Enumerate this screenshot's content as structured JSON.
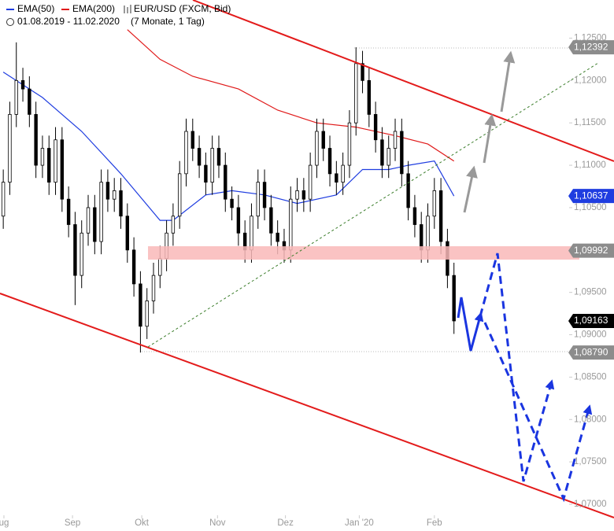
{
  "chart_data": {
    "type": "candlestick",
    "title": "EUR/USD (FXCM, Bid)",
    "subtitle": "01.08.2019 - 11.02.2020",
    "period": "(7 Monate, 1 Tag)",
    "color": "#000000",
    "open": [
      1.104,
      1.108,
      1.116,
      1.12,
      1.119,
      1.116,
      1.11,
      1.112,
      1.108,
      1.113,
      1.106,
      1.103,
      1.097,
      1.102,
      1.105,
      1.101,
      1.108,
      1.106,
      1.107,
      1.104,
      1.1,
      1.096,
      1.091,
      1.094,
      1.097,
      1.099,
      1.102,
      1.104,
      1.109,
      1.114,
      1.112,
      1.11,
      1.108,
      1.112,
      1.11,
      1.106,
      1.105,
      1.102,
      1.1,
      1.104,
      1.108,
      1.105,
      1.102,
      1.101,
      1.1,
      1.106,
      1.107,
      1.106,
      1.11,
      1.114,
      1.112,
      1.109,
      1.108,
      1.11,
      1.115,
      1.122,
      1.12,
      1.116,
      1.113,
      1.11,
      1.112,
      1.114,
      1.109,
      1.105,
      1.103,
      1.1,
      1.104,
      1.107,
      1.101,
      1.097
    ],
    "high": [
      1.1095,
      1.1175,
      1.1245,
      1.1215,
      1.1205,
      1.1175,
      1.1135,
      1.1135,
      1.1145,
      1.1145,
      1.1075,
      1.1045,
      1.1035,
      1.1065,
      1.1065,
      1.1095,
      1.1095,
      1.1085,
      1.1085,
      1.1055,
      1.1015,
      1.0975,
      1.0955,
      1.0985,
      1.1005,
      1.1035,
      1.1055,
      1.1105,
      1.1155,
      1.1155,
      1.1135,
      1.1115,
      1.1135,
      1.1135,
      1.1115,
      1.1075,
      1.1065,
      1.1035,
      1.1055,
      1.1095,
      1.1095,
      1.1065,
      1.1035,
      1.1025,
      1.1075,
      1.1085,
      1.1085,
      1.1115,
      1.1155,
      1.1155,
      1.1135,
      1.1105,
      1.1115,
      1.1165,
      1.12392,
      1.1235,
      1.1215,
      1.1175,
      1.1145,
      1.1135,
      1.1155,
      1.1155,
      1.1105,
      1.1065,
      1.1045,
      1.1055,
      1.1085,
      1.1085,
      1.1025,
      1.0985
    ],
    "low": [
      1.1025,
      1.1065,
      1.1145,
      1.1175,
      1.1145,
      1.1085,
      1.1085,
      1.1065,
      1.1065,
      1.1045,
      1.1015,
      1.0935,
      1.0955,
      1.1005,
      1.0995,
      1.0995,
      1.1045,
      1.1045,
      1.1025,
      1.0985,
      1.0945,
      1.0879,
      1.0895,
      1.0925,
      1.0955,
      1.0975,
      1.1005,
      1.1025,
      1.1075,
      1.1105,
      1.1085,
      1.1065,
      1.1065,
      1.1085,
      1.1045,
      1.1035,
      1.1005,
      1.0985,
      1.0985,
      1.1025,
      1.1035,
      1.1005,
      1.0995,
      1.0985,
      1.0985,
      1.1045,
      1.1045,
      1.1045,
      1.1085,
      1.1105,
      1.1075,
      1.1065,
      1.1065,
      1.1085,
      1.1135,
      1.1185,
      1.1145,
      1.1115,
      1.1085,
      1.1085,
      1.1105,
      1.1075,
      1.1035,
      1.1015,
      1.0985,
      1.0985,
      1.1025,
      1.0995,
      1.0955,
      1.0901
    ],
    "close": [
      1.108,
      1.116,
      1.12,
      1.119,
      1.116,
      1.11,
      1.112,
      1.108,
      1.113,
      1.106,
      1.103,
      1.097,
      1.102,
      1.105,
      1.101,
      1.108,
      1.106,
      1.107,
      1.104,
      1.1,
      1.096,
      1.091,
      1.094,
      1.097,
      1.099,
      1.102,
      1.104,
      1.109,
      1.114,
      1.112,
      1.11,
      1.108,
      1.112,
      1.11,
      1.106,
      1.105,
      1.102,
      1.1,
      1.104,
      1.108,
      1.105,
      1.102,
      1.101,
      1.1,
      1.106,
      1.107,
      1.106,
      1.11,
      1.114,
      1.112,
      1.109,
      1.108,
      1.11,
      1.115,
      1.122,
      1.12,
      1.116,
      1.113,
      1.11,
      1.112,
      1.114,
      1.109,
      1.105,
      1.103,
      1.1,
      1.104,
      1.107,
      1.101,
      1.097,
      1.09163
    ],
    "series": [
      {
        "name": "EMA(50)",
        "color": "#1f3de0",
        "x": [
          0,
          6,
          12,
          18,
          24,
          26,
          31,
          35,
          40,
          45,
          51,
          55,
          59,
          62,
          66,
          69
        ],
        "values": [
          1.121,
          1.118,
          1.114,
          1.109,
          1.1035,
          1.1035,
          1.1065,
          1.107,
          1.1065,
          1.1055,
          1.1065,
          1.1095,
          1.1095,
          1.11,
          1.1105,
          1.10637
        ]
      },
      {
        "name": "EMA(200)",
        "color": "#e01a1a",
        "x": [
          19,
          24,
          29,
          36,
          42,
          48,
          54,
          60,
          65,
          69
        ],
        "values": [
          1.126,
          1.1225,
          1.1205,
          1.119,
          1.1165,
          1.115,
          1.1145,
          1.1135,
          1.1125,
          1.1105
        ]
      }
    ],
    "xlim": [
      -0.5,
      93.5
    ],
    "xticks": [
      {
        "value": 0.1,
        "label": "ug"
      },
      {
        "value": 10.6,
        "label": "Sep"
      },
      {
        "value": 21.2,
        "label": "Okt"
      },
      {
        "value": 32.8,
        "label": "Nov"
      },
      {
        "value": 43.2,
        "label": "Dez"
      },
      {
        "value": 54.5,
        "label": "Jan '20"
      },
      {
        "value": 66,
        "label": "Feb"
      }
    ],
    "ylim": [
      1.0687,
      1.1295
    ],
    "yticks": [
      {
        "value": 1.07,
        "label": "1,07000"
      },
      {
        "value": 1.075,
        "label": "1,07500"
      },
      {
        "value": 1.08,
        "label": "1,08000"
      },
      {
        "value": 1.085,
        "label": "1,08500"
      },
      {
        "value": 1.09,
        "label": "1,09000"
      },
      {
        "value": 1.095,
        "label": "1,09500"
      },
      {
        "value": 1.1,
        "label": "1,10000"
      },
      {
        "value": 1.105,
        "label": "1,10500"
      },
      {
        "value": 1.11,
        "label": "1,11000"
      },
      {
        "value": 1.115,
        "label": "1,11500"
      },
      {
        "value": 1.12,
        "label": "1,12000"
      },
      {
        "value": 1.125,
        "label": "1,12500"
      }
    ],
    "price_labels": [
      {
        "value": 1.12392,
        "label": "1,12392",
        "color": "#8c8c8c"
      },
      {
        "value": 1.10637,
        "label": "1,10637",
        "color": "#1f3de0"
      },
      {
        "value": 1.09992,
        "label": "1,09992",
        "color": "#8c8c8c"
      },
      {
        "value": 1.09163,
        "label": "1,09163",
        "color": "#000000"
      },
      {
        "value": 1.0879,
        "label": "1,08790",
        "color": "#8c8c8c"
      }
    ]
  }
}
